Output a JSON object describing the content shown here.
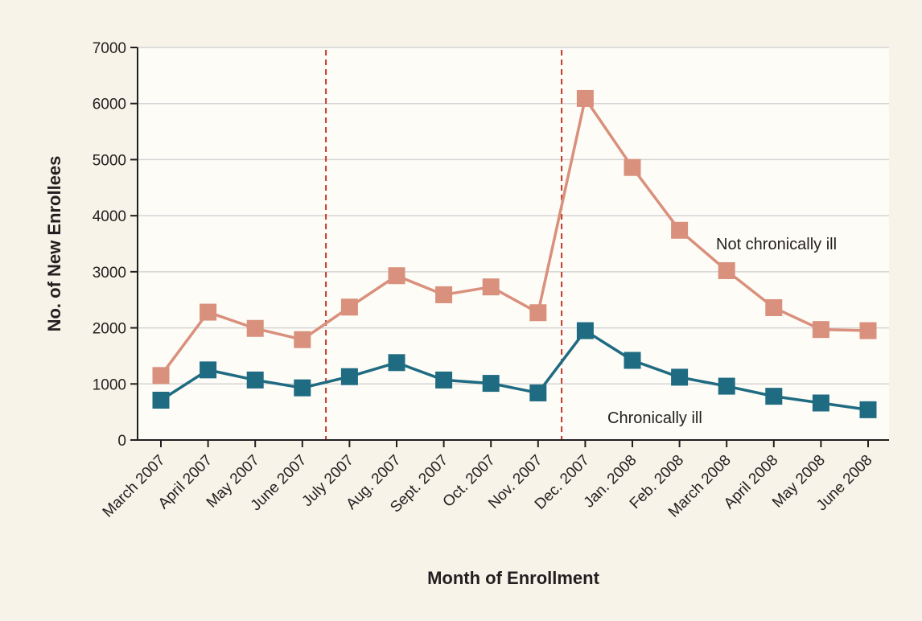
{
  "chart_data": {
    "type": "line",
    "xlabel": "Month of Enrollment",
    "ylabel": "No. of New Enrollees",
    "ylim": [
      0,
      7000
    ],
    "yticks": [
      0,
      1000,
      2000,
      3000,
      4000,
      5000,
      6000,
      7000
    ],
    "grid": "horizontal",
    "categories": [
      "March 2007",
      "April 2007",
      "May 2007",
      "June 2007",
      "July 2007",
      "Aug. 2007",
      "Sept. 2007",
      "Oct. 2007",
      "Nov. 2007",
      "Dec. 2007",
      "Jan. 2008",
      "Feb. 2008",
      "March 2008",
      "April 2008",
      "May 2008",
      "June 2008"
    ],
    "reference_lines_between": [
      [
        "June 2007",
        "July 2007"
      ],
      [
        "Nov. 2007",
        "Dec. 2007"
      ]
    ],
    "series": [
      {
        "name": "Not chronically ill",
        "color": "#d9907c",
        "values": [
          1150,
          2280,
          1990,
          1790,
          2370,
          2930,
          2590,
          2730,
          2270,
          6090,
          4860,
          3740,
          3020,
          2360,
          1970,
          1950
        ]
      },
      {
        "name": "Chronically ill",
        "color": "#1f6b82",
        "values": [
          710,
          1250,
          1070,
          930,
          1130,
          1380,
          1070,
          1010,
          840,
          1950,
          1420,
          1120,
          960,
          780,
          660,
          540
        ]
      }
    ],
    "colors": {
      "plot_background": "#fdfcf7",
      "page_background": "#f7f3e8",
      "grid": "#d6d4d4",
      "reference_line": "#c0392b",
      "axis": "#231f20"
    }
  }
}
